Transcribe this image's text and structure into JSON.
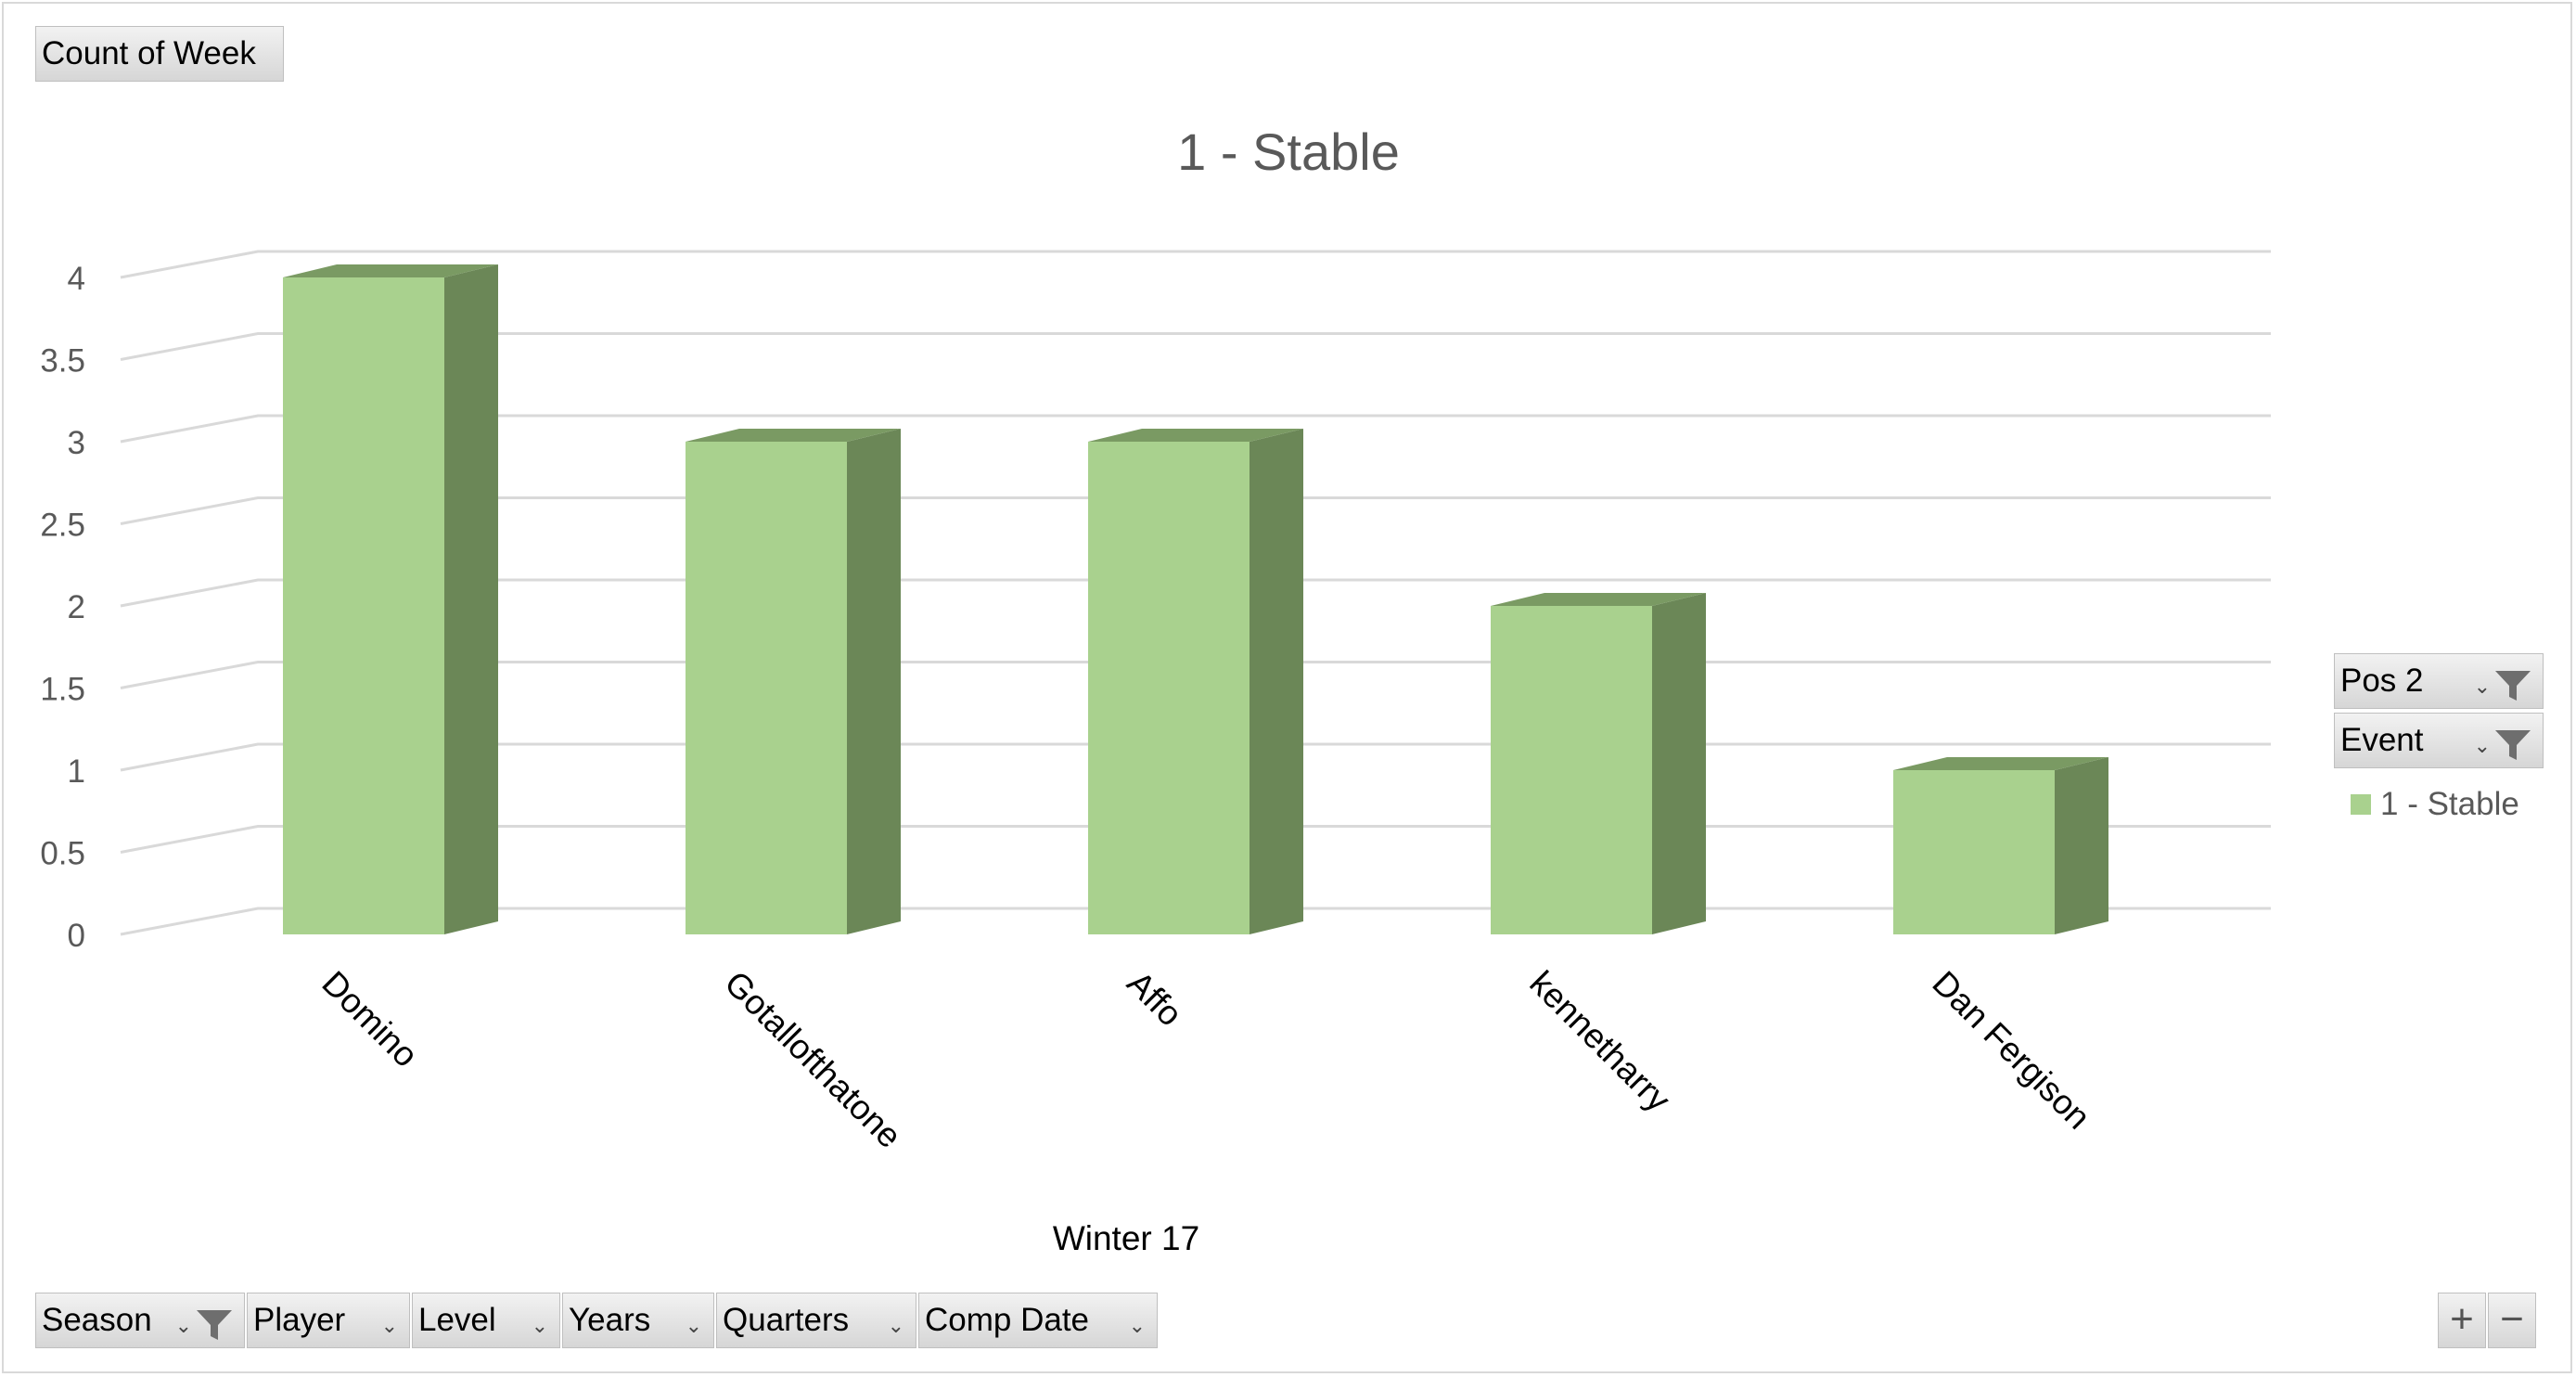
{
  "value_field": "Count of Week",
  "chart_data": {
    "type": "bar",
    "title": "1 - Stable",
    "categories": [
      "Domino",
      "Gotallofthatone",
      "Affo",
      "kennetharry",
      "Dan Fergison"
    ],
    "series": [
      {
        "name": "1 - Stable",
        "values": [
          4,
          3,
          3,
          2,
          1
        ]
      }
    ],
    "yticks": [
      "0",
      "0.5",
      "1",
      "1.5",
      "2",
      "2.5",
      "3",
      "3.5",
      "4"
    ],
    "ylim": [
      0,
      4
    ],
    "xlabel": "Winter 17",
    "ylabel": "",
    "grid": true,
    "legend_position": "right",
    "bar_color": "#a9d18e",
    "bar_side_color": "#6b8757",
    "bar_top_color": "#7a9a63"
  },
  "legend_filters": [
    {
      "label": "Pos 2"
    },
    {
      "label": "Event"
    }
  ],
  "axis_fields": [
    {
      "label": "Season",
      "filtered": true
    },
    {
      "label": "Player",
      "filtered": false
    },
    {
      "label": "Level",
      "filtered": false
    },
    {
      "label": "Years",
      "filtered": false
    },
    {
      "label": "Quarters",
      "filtered": false
    },
    {
      "label": "Comp Date",
      "filtered": false
    }
  ],
  "zoom": {
    "plus": "+",
    "minus": "−"
  }
}
